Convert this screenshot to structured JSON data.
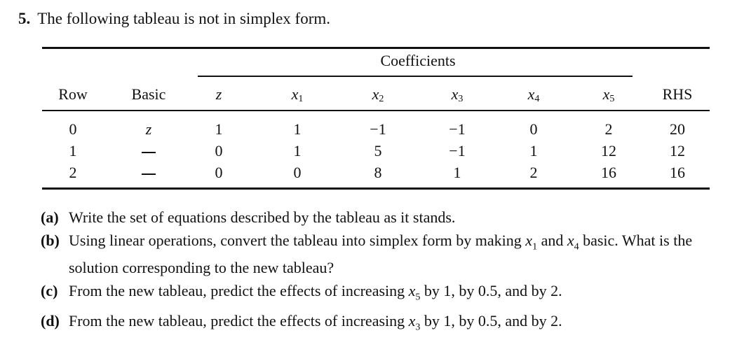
{
  "problem": {
    "number": "5.",
    "statement": "The following tableau is not in simplex form."
  },
  "tableau": {
    "group_header": "Coefficients",
    "row_header": "Row",
    "basic_header": "Basic",
    "rhs_header": "RHS",
    "variables": [
      {
        "name": "z",
        "sub": ""
      },
      {
        "name": "x",
        "sub": "1"
      },
      {
        "name": "x",
        "sub": "2"
      },
      {
        "name": "x",
        "sub": "3"
      },
      {
        "name": "x",
        "sub": "4"
      },
      {
        "name": "x",
        "sub": "5"
      }
    ],
    "rows": [
      {
        "row": "0",
        "basic": "z",
        "coefficients": [
          "1",
          "1",
          "−1",
          "−1",
          "0",
          "2"
        ],
        "rhs": "20"
      },
      {
        "row": "1",
        "basic": "",
        "coefficients": [
          "0",
          "1",
          "5",
          "−1",
          "1",
          "12"
        ],
        "rhs": "12"
      },
      {
        "row": "2",
        "basic": "",
        "coefficients": [
          "0",
          "0",
          "8",
          "1",
          "2",
          "16"
        ],
        "rhs": "16"
      }
    ]
  },
  "parts": [
    {
      "letter": "(a)",
      "segments": [
        {
          "text": "Write the set of equations described by the tableau as it stands."
        }
      ]
    },
    {
      "letter": "(b)",
      "segments": [
        {
          "text": "Using linear operations, convert the tableau into simplex form by making "
        },
        {
          "var": "x",
          "sub": "1"
        },
        {
          "text": " and "
        },
        {
          "var": "x",
          "sub": "4"
        },
        {
          "text": " basic. What is the solution corresponding to the new tableau?"
        }
      ]
    },
    {
      "letter": "(c)",
      "segments": [
        {
          "text": "From the new tableau, predict the effects of increasing "
        },
        {
          "var": "x",
          "sub": "5"
        },
        {
          "text": " by 1, by 0.5, and by 2."
        }
      ]
    },
    {
      "letter": "(d)",
      "segments": [
        {
          "text": "From the new tableau, predict the effects of increasing "
        },
        {
          "var": "x",
          "sub": "3"
        },
        {
          "text": " by 1, by 0.5, and by 2."
        }
      ]
    }
  ]
}
